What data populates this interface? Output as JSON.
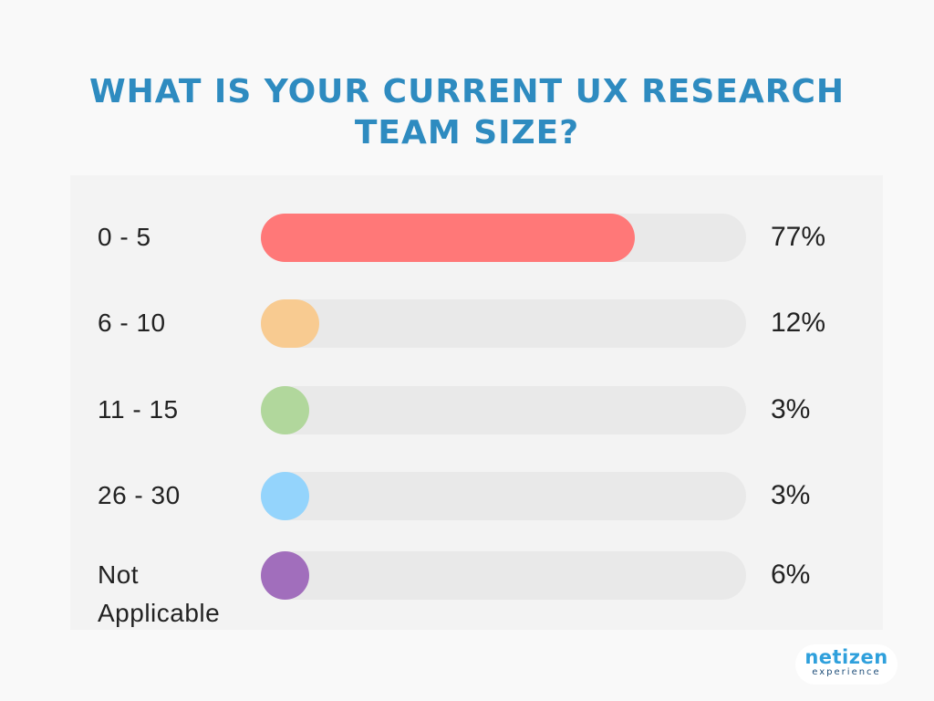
{
  "chart_data": {
    "type": "bar",
    "orientation": "horizontal",
    "title": "WHAT IS YOUR CURRENT UX RESEARCH TEAM SIZE?",
    "title_lines": [
      "WHAT IS YOUR CURRENT UX RESEARCH",
      "TEAM SIZE?"
    ],
    "xlim": [
      0,
      100
    ],
    "unit": "%",
    "categories": [
      "0 - 5",
      "6 - 10",
      "11 - 15",
      "26 - 30",
      "Not Applicable"
    ],
    "values": [
      77,
      12,
      3,
      3,
      6
    ],
    "value_labels": [
      "77%",
      "12%",
      "3%",
      "3%",
      "6%"
    ],
    "colors": [
      "#ff7878",
      "#f8cb91",
      "#b1d79c",
      "#94d4fc",
      "#a16ebc"
    ],
    "track_color": "#e9e9e9",
    "title_color": "#2e8bc0"
  },
  "logo": {
    "main": "netizen",
    "sub": "experience"
  }
}
